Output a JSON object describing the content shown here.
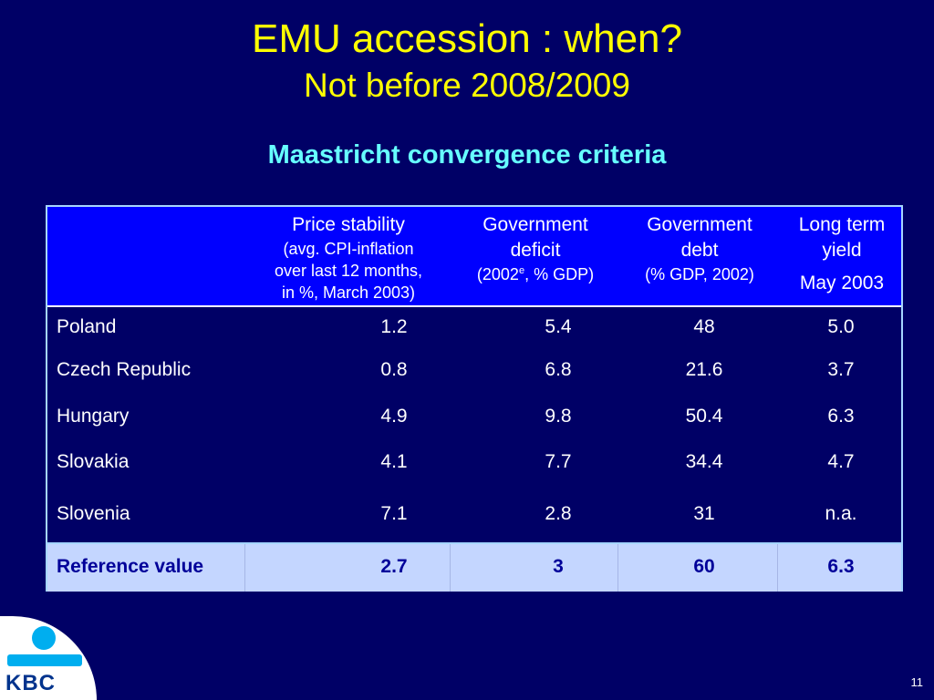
{
  "title": {
    "main": "EMU accession : when?",
    "sub": "Not before 2008/2009"
  },
  "section_heading": "Maastricht convergence criteria",
  "table": {
    "columns": [
      {
        "line1": "Price stability",
        "line2": "(avg. CPI-inflation",
        "line3": "over last 12 months,",
        "line4": "in %, March 2003)"
      },
      {
        "line1": "Government",
        "line2": "deficit",
        "note_pre": "(2002",
        "note_sup": "e",
        "note_post": ", % GDP)"
      },
      {
        "line1": "Government",
        "line2": "debt",
        "note": "(% GDP, 2002)"
      },
      {
        "line1": "Long term",
        "line2": "yield",
        "line3": "May 2003"
      }
    ],
    "rows": [
      {
        "country": "Poland",
        "price": "1.2",
        "deficit": "5.4",
        "debt": "48",
        "yield": "5.0"
      },
      {
        "country": "Czech Republic",
        "price": "0.8",
        "deficit": "6.8",
        "debt": "21.6",
        "yield": "3.7"
      },
      {
        "country": "Hungary",
        "price": "4.9",
        "deficit": "9.8",
        "debt": "50.4",
        "yield": "6.3"
      },
      {
        "country": "Slovakia",
        "price": "4.1",
        "deficit": "7.7",
        "debt": "34.4",
        "yield": "4.7"
      },
      {
        "country": "Slovenia",
        "price": "7.1",
        "deficit": "2.8",
        "debt": "31",
        "yield": "n.a."
      }
    ],
    "reference": {
      "label": "Reference value",
      "price": "2.7",
      "deficit": "3",
      "debt": "60",
      "yield": "6.3"
    }
  },
  "logo": {
    "text": "KBC",
    "icon": "kbc-person-icon"
  },
  "page_number": "11",
  "colors": {
    "background": "#000066",
    "title": "#ffff00",
    "heading": "#66ffff",
    "header_bg": "#0000ff",
    "reference_bg": "#c4d6ff"
  }
}
